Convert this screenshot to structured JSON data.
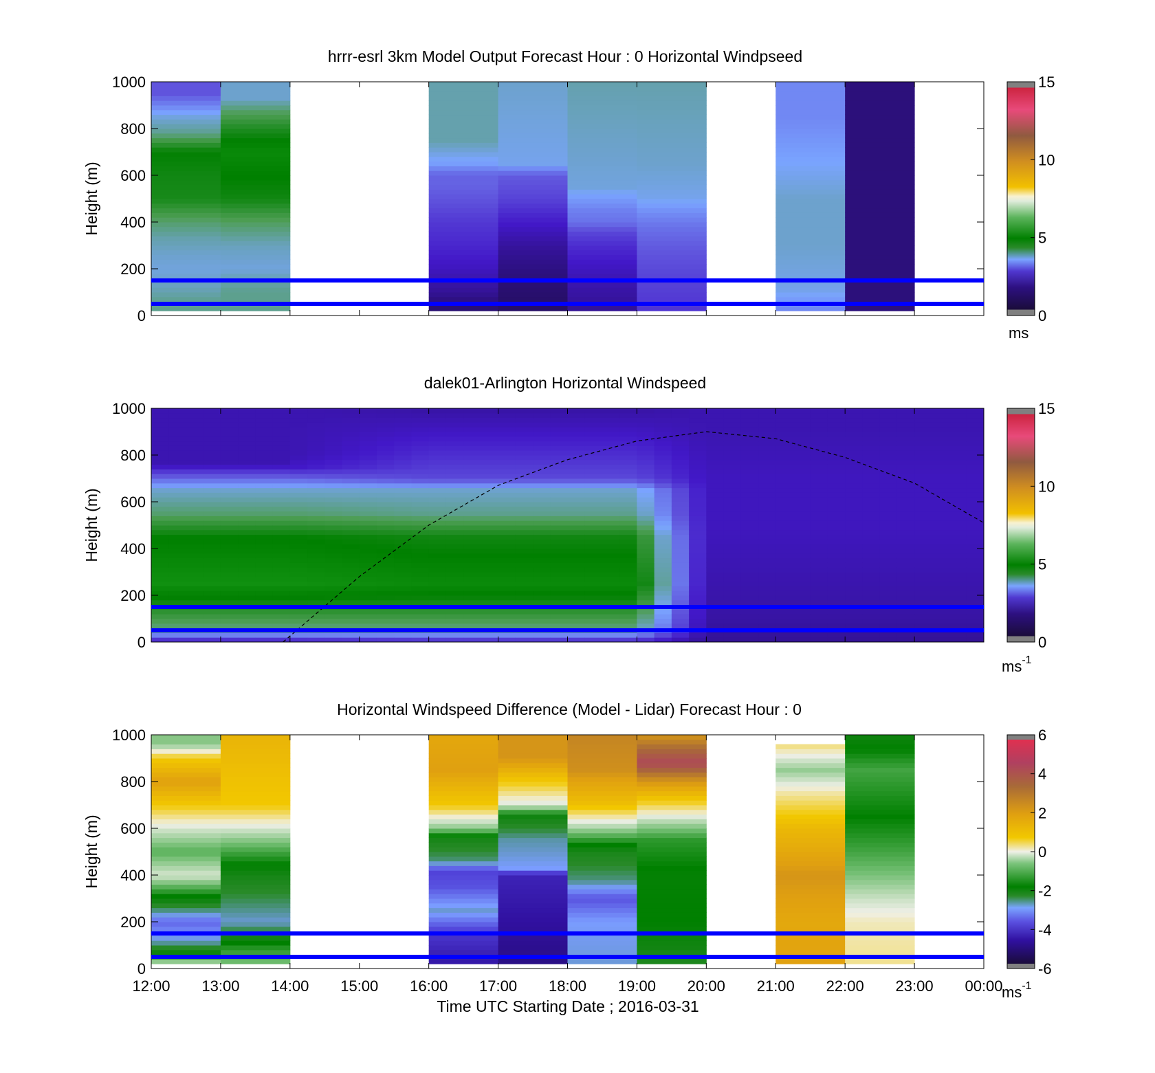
{
  "figure": {
    "xlabel": "Time UTC  Starting Date ; 2016-03-31",
    "x_ticks": [
      "12:00",
      "13:00",
      "14:00",
      "15:00",
      "16:00",
      "17:00",
      "18:00",
      "19:00",
      "20:00",
      "21:00",
      "22:00",
      "23:00",
      "00:00"
    ]
  },
  "chart_data": [
    {
      "type": "heatmap",
      "title": "hrrr-esrl 3km Model Output   Forecast Hour : 0 Horizontal Windpseed",
      "ylabel": "Height (m)",
      "ylim": [
        0,
        1000
      ],
      "y_ticks": [
        "0",
        "200",
        "400",
        "600",
        "800",
        "1000"
      ],
      "colorbar": {
        "unit": "ms",
        "unit_exp": "",
        "range": [
          0,
          15
        ],
        "ticks": [
          "0",
          "5",
          "10",
          "15"
        ]
      },
      "reference_lines_m": [
        150,
        50
      ],
      "columns": [
        {
          "hour": "12:00",
          "profile": [
            [
              0,
              5
            ],
            [
              60,
              5
            ],
            [
              100,
              4.8
            ],
            [
              150,
              4.6
            ],
            [
              200,
              4.5
            ],
            [
              260,
              4.6
            ],
            [
              330,
              4.8
            ],
            [
              400,
              5.2
            ],
            [
              500,
              6.1
            ],
            [
              600,
              6.2
            ],
            [
              700,
              6.4
            ],
            [
              780,
              5.0
            ],
            [
              850,
              4.5
            ],
            [
              950,
              3.2
            ],
            [
              1000,
              3.2
            ]
          ]
        },
        {
          "hour": "13:00",
          "profile": [
            [
              0,
              5
            ],
            [
              100,
              5
            ],
            [
              150,
              4.8
            ],
            [
              200,
              4.5
            ],
            [
              300,
              4.7
            ],
            [
              400,
              5.3
            ],
            [
              500,
              6.2
            ],
            [
              620,
              6.5
            ],
            [
              700,
              6.8
            ],
            [
              800,
              6.0
            ],
            [
              870,
              5.3
            ],
            [
              930,
              4.6
            ],
            [
              1000,
              4.6
            ]
          ]
        },
        {
          "hour": "14:00",
          "profile": null
        },
        {
          "hour": "15:00",
          "profile": null
        },
        {
          "hour": "16:00",
          "profile": [
            [
              0,
              0.8
            ],
            [
              50,
              0.9
            ],
            [
              100,
              1.4
            ],
            [
              200,
              2.0
            ],
            [
              300,
              2.4
            ],
            [
              400,
              2.7
            ],
            [
              500,
              3.2
            ],
            [
              560,
              3.4
            ],
            [
              600,
              3.4
            ],
            [
              650,
              4.2
            ],
            [
              750,
              4.8
            ],
            [
              1000,
              4.8
            ]
          ]
        },
        {
          "hour": "17:00",
          "profile": [
            [
              0,
              0.6
            ],
            [
              100,
              0.8
            ],
            [
              200,
              1.1
            ],
            [
              300,
              1.5
            ],
            [
              400,
              2.2
            ],
            [
              500,
              2.9
            ],
            [
              600,
              3.3
            ],
            [
              650,
              4.4
            ],
            [
              1000,
              4.6
            ]
          ]
        },
        {
          "hour": "18:00",
          "profile": [
            [
              0,
              1.3
            ],
            [
              100,
              1.6
            ],
            [
              200,
              2.0
            ],
            [
              300,
              2.5
            ],
            [
              350,
              2.9
            ],
            [
              400,
              3.6
            ],
            [
              450,
              3.8
            ],
            [
              550,
              4.5
            ],
            [
              700,
              4.6
            ],
            [
              1000,
              4.8
            ]
          ]
        },
        {
          "hour": "19:00",
          "profile": [
            [
              0,
              2.6
            ],
            [
              100,
              2.8
            ],
            [
              200,
              3.0
            ],
            [
              300,
              3.3
            ],
            [
              380,
              3.6
            ],
            [
              430,
              3.9
            ],
            [
              500,
              4.4
            ],
            [
              650,
              4.6
            ],
            [
              1000,
              4.8
            ]
          ]
        },
        {
          "hour": "20:00",
          "profile": null
        },
        {
          "hour": "21:00",
          "profile": [
            [
              0,
              3.8
            ],
            [
              50,
              4.0
            ],
            [
              100,
              4.4
            ],
            [
              300,
              4.6
            ],
            [
              500,
              4.6
            ],
            [
              700,
              4.2
            ],
            [
              850,
              3.9
            ],
            [
              1000,
              3.9
            ]
          ]
        },
        {
          "hour": "22:00",
          "profile": [
            [
              0,
              1.0
            ],
            [
              1000,
              1.0
            ]
          ]
        },
        {
          "hour": "23:00",
          "profile": null
        }
      ]
    },
    {
      "type": "heatmap",
      "title": "dalek01-Arlington  Horizontal Windspeed",
      "ylabel": "Height (m)",
      "ylim": [
        0,
        1000
      ],
      "y_ticks": [
        "0",
        "200",
        "400",
        "600",
        "800",
        "1000"
      ],
      "colorbar": {
        "unit": "ms",
        "unit_exp": "-1",
        "range": [
          0,
          15
        ],
        "ticks": [
          "0",
          "5",
          "10",
          "15"
        ]
      },
      "reference_lines_m": [
        150,
        50
      ],
      "layers": [
        {
          "from_hour": 12.0,
          "to_hour": 14.0,
          "height_m": [
            0,
            50,
            150,
            250,
            450,
            550,
            650,
            720,
            760,
            1000
          ],
          "speed": [
            2.0,
            5.0,
            6.0,
            7.0,
            6.4,
            5.2,
            4.6,
            3.0,
            1.8,
            1.8
          ]
        },
        {
          "from_hour": 16.0,
          "to_hour": 19.0,
          "height_m": [
            0,
            50,
            150,
            250,
            450,
            550,
            650,
            700,
            1000
          ],
          "speed": [
            2.2,
            5.0,
            6.0,
            6.8,
            6.2,
            5.0,
            4.6,
            3.0,
            1.6
          ]
        },
        {
          "from_hour": 20.0,
          "to_hour": 24.0,
          "height_m": [
            0,
            100,
            300,
            500,
            700,
            900,
            1000
          ],
          "speed": [
            1.4,
            1.6,
            1.8,
            2.0,
            2.0,
            1.8,
            1.8
          ]
        }
      ],
      "boundary_layer_curve": [
        [
          13.9,
          0
        ],
        [
          15.0,
          280
        ],
        [
          16.0,
          500
        ],
        [
          17.0,
          670
        ],
        [
          18.0,
          780
        ],
        [
          19.0,
          860
        ],
        [
          20.0,
          900
        ],
        [
          21.0,
          870
        ],
        [
          22.0,
          790
        ],
        [
          23.0,
          680
        ],
        [
          24.0,
          510
        ]
      ]
    },
    {
      "type": "heatmap",
      "title": "Horizontal Windspeed Difference (Model - Lidar) Forecast Hour : 0",
      "ylabel": "Height (m)",
      "ylim": [
        0,
        1000
      ],
      "y_ticks": [
        "0",
        "200",
        "400",
        "600",
        "800",
        "1000"
      ],
      "colorbar": {
        "unit": "ms",
        "unit_exp": "-1",
        "range": [
          -6,
          6
        ],
        "ticks": [
          "-6",
          "-4",
          "-2",
          "0",
          "2",
          "4",
          "6"
        ]
      },
      "reference_lines_m": [
        150,
        50
      ],
      "columns": [
        {
          "hour": "12:00",
          "profile": [
            [
              0,
              1.5
            ],
            [
              60,
              -1.0
            ],
            [
              120,
              -2.8
            ],
            [
              200,
              -3.6
            ],
            [
              300,
              -1.2
            ],
            [
              400,
              0.8
            ],
            [
              500,
              -0.2
            ],
            [
              600,
              0.8
            ],
            [
              700,
              2.0
            ],
            [
              800,
              3.0
            ],
            [
              900,
              2.0
            ],
            [
              960,
              0.2
            ],
            [
              1000,
              0.2
            ]
          ]
        },
        {
          "hour": "13:00",
          "profile": [
            [
              0,
              0.3
            ],
            [
              100,
              -0.8
            ],
            [
              200,
              -2.8
            ],
            [
              400,
              -1.5
            ],
            [
              500,
              -0.4
            ],
            [
              600,
              0.8
            ],
            [
              700,
              2.0
            ],
            [
              1000,
              2.5
            ]
          ]
        },
        {
          "hour": "14:00",
          "profile": null
        },
        {
          "hour": "15:00",
          "profile": null
        },
        {
          "hour": "16:00",
          "profile": [
            [
              0,
              -5.0
            ],
            [
              150,
              -4.2
            ],
            [
              250,
              -2.8
            ],
            [
              350,
              -3.8
            ],
            [
              420,
              -4.0
            ],
            [
              460,
              -2.4
            ],
            [
              550,
              -1.6
            ],
            [
              600,
              0.2
            ],
            [
              700,
              2.0
            ],
            [
              850,
              3.0
            ],
            [
              1000,
              2.8
            ]
          ]
        },
        {
          "hour": "17:00",
          "profile": [
            [
              0,
              -5.3
            ],
            [
              200,
              -5.0
            ],
            [
              400,
              -4.6
            ],
            [
              430,
              -3.0
            ],
            [
              550,
              -2.6
            ],
            [
              650,
              -1.4
            ],
            [
              700,
              0.8
            ],
            [
              800,
              2.0
            ],
            [
              900,
              3.2
            ],
            [
              1000,
              3.2
            ]
          ]
        },
        {
          "hour": "18:00",
          "profile": [
            [
              0,
              -2.8
            ],
            [
              200,
              -3.0
            ],
            [
              300,
              -3.8
            ],
            [
              380,
              -2.4
            ],
            [
              500,
              -1.6
            ],
            [
              600,
              0.4
            ],
            [
              700,
              2.2
            ],
            [
              850,
              3.3
            ],
            [
              1000,
              3.5
            ]
          ]
        },
        {
          "hour": "19:00",
          "profile": [
            [
              0,
              -1.8
            ],
            [
              200,
              -1.0
            ],
            [
              400,
              -1.1
            ],
            [
              550,
              -0.6
            ],
            [
              620,
              0.4
            ],
            [
              720,
              2.0
            ],
            [
              820,
              3.5
            ],
            [
              880,
              4.8
            ],
            [
              1000,
              3.2
            ]
          ]
        },
        {
          "hour": "20:00",
          "profile": null
        },
        {
          "hour": "21:00",
          "profile": [
            [
              0,
              3.0
            ],
            [
              200,
              2.8
            ],
            [
              400,
              3.2
            ],
            [
              600,
              2.4
            ],
            [
              750,
              1.3
            ],
            [
              850,
              0.3
            ],
            [
              950,
              1.4
            ],
            [
              1000,
              null
            ]
          ]
        },
        {
          "hour": "22:00",
          "profile": [
            [
              0,
              1.4
            ],
            [
              200,
              1.2
            ],
            [
              300,
              0.7
            ],
            [
              400,
              0.1
            ],
            [
              500,
              -0.4
            ],
            [
              650,
              -1.0
            ],
            [
              850,
              -0.4
            ],
            [
              1000,
              -1.4
            ]
          ]
        },
        {
          "hour": "23:00",
          "profile": null
        }
      ]
    }
  ],
  "colors": {
    "reference_line": "#0000ff",
    "speed_colormap": [
      "#1a0c3a",
      "#2d1080",
      "#4218c8",
      "#6055dd",
      "#7aa4ff",
      "#4e9e55",
      "#008000",
      "#1e9e1e",
      "#7cc47c",
      "#e0ecdc",
      "#f2c000",
      "#d08e20",
      "#905a40",
      "#e84a7a",
      "#cc2440"
    ],
    "diff_colormap": [
      "#1a0c3a",
      "#3010a0",
      "#5040d8",
      "#7a9cff",
      "#2a8a2a",
      "#008000",
      "#6ebc6e",
      "#f0f0e8",
      "#f2c800",
      "#e0a010",
      "#a86a38",
      "#b04060",
      "#e03050"
    ]
  }
}
